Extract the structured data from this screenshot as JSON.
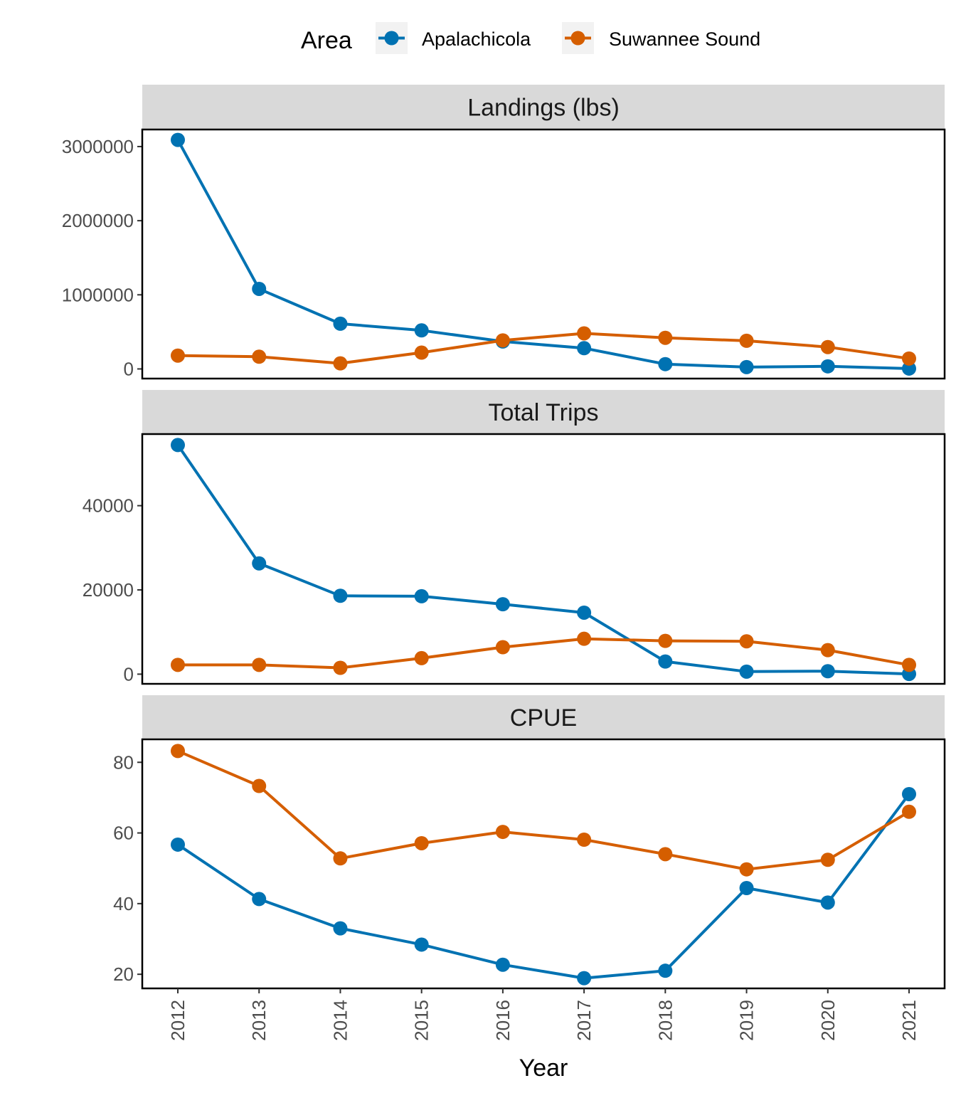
{
  "legend": {
    "title": "Area",
    "position": "top"
  },
  "colors": {
    "Apalachicola": "#0072B2",
    "Suwannee Sound": "#D55E00",
    "strip_background": "#d9d9d9",
    "panel_border": "#000000"
  },
  "chart_data": {
    "type": "line",
    "xlabel": "Year",
    "x": [
      2012,
      2013,
      2014,
      2015,
      2016,
      2017,
      2018,
      2019,
      2020,
      2021
    ],
    "x_tick_labels": [
      "2012",
      "2013",
      "2014",
      "2015",
      "2016",
      "2017",
      "2018",
      "2019",
      "2020",
      "2021"
    ],
    "series_names": [
      "Apalachicola",
      "Suwannee Sound"
    ],
    "grid": false,
    "facets": [
      {
        "title": "Landings (lbs)",
        "ylim": [
          -130000,
          3230000
        ],
        "yticks": [
          0,
          1000000,
          2000000,
          3000000
        ],
        "ytick_labels": [
          "0",
          "1000000",
          "2000000",
          "3000000"
        ],
        "series": [
          {
            "name": "Apalachicola",
            "values": [
              3090000,
              1080000,
              610000,
              520000,
              370000,
              280000,
              65000,
              25000,
              35000,
              5000
            ]
          },
          {
            "name": "Suwannee Sound",
            "values": [
              180000,
              165000,
              75000,
              220000,
              385000,
              480000,
              420000,
              380000,
              295000,
              140000
            ]
          }
        ]
      },
      {
        "title": "Total Trips",
        "ylim": [
          -2300,
          57000
        ],
        "yticks": [
          0,
          20000,
          40000
        ],
        "ytick_labels": [
          "0",
          "20000",
          "40000"
        ],
        "series": [
          {
            "name": "Apalachicola",
            "values": [
              54400,
              26300,
              18600,
              18500,
              16600,
              14600,
              3000,
              600,
              700,
              50
            ]
          },
          {
            "name": "Suwannee Sound",
            "values": [
              2200,
              2200,
              1500,
              3800,
              6400,
              8400,
              7900,
              7800,
              5700,
              2200
            ]
          }
        ]
      },
      {
        "title": "CPUE",
        "ylim": [
          16,
          86.5
        ],
        "yticks": [
          20,
          40,
          60,
          80
        ],
        "ytick_labels": [
          "20",
          "40",
          "60",
          "80"
        ],
        "series": [
          {
            "name": "Apalachicola",
            "values": [
              56.7,
              41.3,
              33,
              28.4,
              22.7,
              18.9,
              21,
              44.4,
              40.3,
              71
            ]
          },
          {
            "name": "Suwannee Sound",
            "values": [
              83.2,
              73.3,
              52.8,
              57.1,
              60.3,
              58.1,
              54,
              49.7,
              52.4,
              66
            ]
          }
        ]
      }
    ]
  }
}
